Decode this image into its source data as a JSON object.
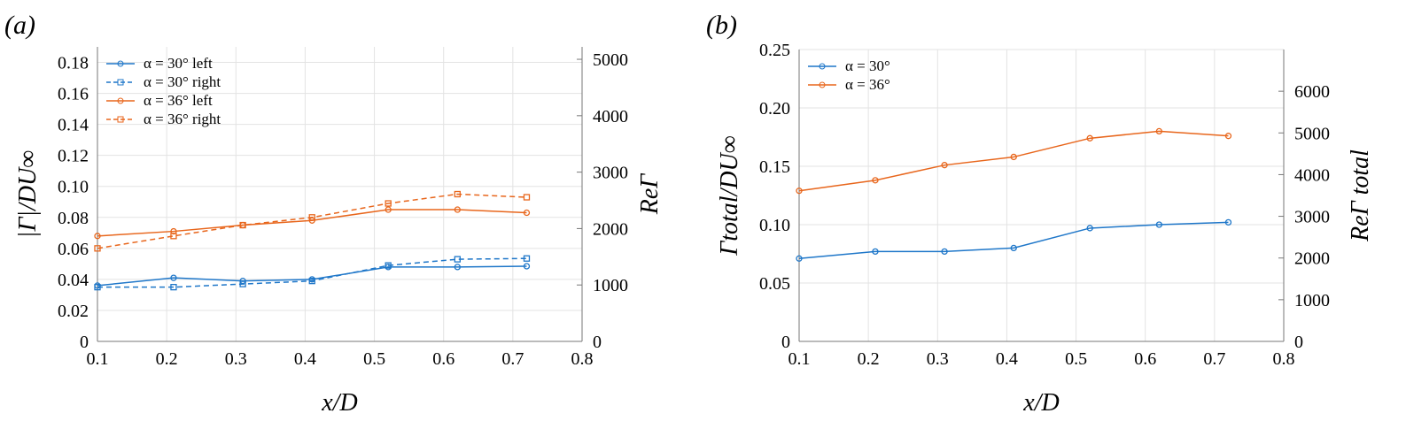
{
  "chart_data": [
    {
      "type": "line",
      "panel_label": "(a)",
      "xlabel": "x/D",
      "ylabel": "|Γ|/DU∞",
      "ylabel_right": "ReΓ",
      "xlim": [
        0.1,
        0.8
      ],
      "ylim": [
        0,
        0.19
      ],
      "ylim_right": [
        0,
        5220
      ],
      "grid": true,
      "legend": "top-left",
      "xticks": [
        "0.1",
        "0.2",
        "0.3",
        "0.4",
        "0.5",
        "0.6",
        "0.7",
        "0.8"
      ],
      "yticks": [
        "0",
        "0.02",
        "0.04",
        "0.06",
        "0.08",
        "0.10",
        "0.12",
        "0.14",
        "0.16",
        "0.18"
      ],
      "yticks_right": [
        "0",
        "1000",
        "2000",
        "3000",
        "4000",
        "5000"
      ],
      "x": [
        0.1,
        0.21,
        0.31,
        0.41,
        0.52,
        0.62,
        0.72
      ],
      "series": [
        {
          "name": "α = 30° left",
          "color": "#1f77c9",
          "dash": false,
          "marker": "circle",
          "values": [
            0.036,
            0.041,
            0.039,
            0.04,
            0.048,
            0.048,
            0.0485
          ]
        },
        {
          "name": "α = 30° right",
          "color": "#1f77c9",
          "dash": true,
          "marker": "square",
          "values": [
            0.035,
            0.035,
            0.037,
            0.039,
            0.049,
            0.053,
            0.0535
          ]
        },
        {
          "name": "α = 36° left",
          "color": "#e8661c",
          "dash": false,
          "marker": "circle",
          "values": [
            0.068,
            0.071,
            0.075,
            0.078,
            0.085,
            0.085,
            0.083
          ]
        },
        {
          "name": "α = 36° right",
          "color": "#e8661c",
          "dash": true,
          "marker": "square",
          "values": [
            0.06,
            0.068,
            0.075,
            0.08,
            0.089,
            0.095,
            0.093
          ]
        }
      ]
    },
    {
      "type": "line",
      "panel_label": "(b)",
      "xlabel": "x/D",
      "ylabel": "Γtotal/DU∞",
      "ylabel_right": "ReΓ total",
      "xlim": [
        0.1,
        0.8
      ],
      "ylim": [
        0,
        0.25
      ],
      "ylim_right": [
        0,
        7000
      ],
      "grid": true,
      "legend": "top-left",
      "xticks": [
        "0.1",
        "0.2",
        "0.3",
        "0.4",
        "0.5",
        "0.6",
        "0.7",
        "0.8"
      ],
      "yticks": [
        "0",
        "0.05",
        "0.10",
        "0.15",
        "0.20",
        "0.25"
      ],
      "yticks_right": [
        "0",
        "1000",
        "2000",
        "3000",
        "4000",
        "5000",
        "6000"
      ],
      "x": [
        0.1,
        0.21,
        0.31,
        0.41,
        0.52,
        0.62,
        0.72
      ],
      "series": [
        {
          "name": "α = 30°",
          "color": "#1f77c9",
          "dash": false,
          "marker": "circle",
          "values": [
            0.071,
            0.077,
            0.077,
            0.08,
            0.097,
            0.1,
            0.102
          ]
        },
        {
          "name": "α = 36°",
          "color": "#e8661c",
          "dash": false,
          "marker": "circle",
          "values": [
            0.129,
            0.138,
            0.151,
            0.158,
            0.174,
            0.18,
            0.176
          ]
        }
      ]
    }
  ]
}
